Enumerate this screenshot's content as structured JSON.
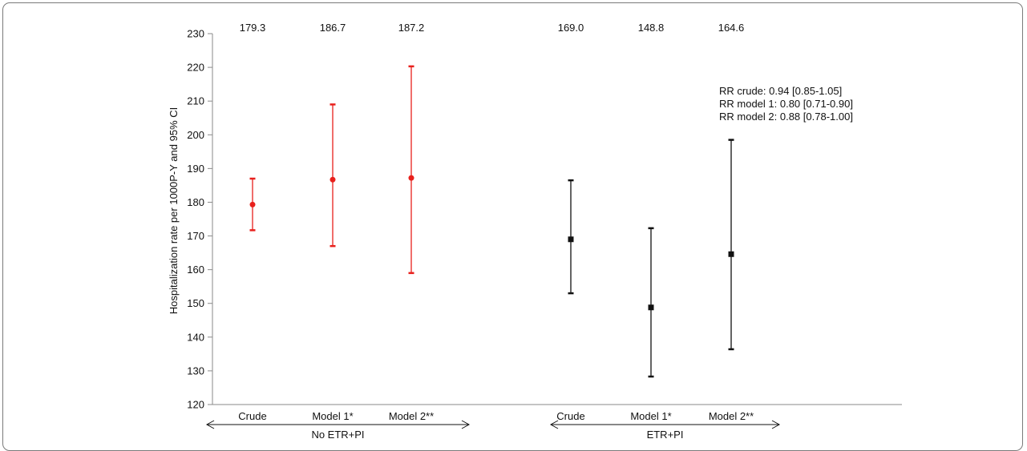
{
  "chart_data": {
    "type": "scatter",
    "ylabel": "Hospitalization rate per 1000P-Y and 95% CI",
    "ylim": [
      120,
      230
    ],
    "yticks": [
      120,
      130,
      140,
      150,
      160,
      170,
      180,
      190,
      200,
      210,
      220,
      230
    ],
    "groups": [
      {
        "name": "No ETR+PI",
        "color": "#e8201c",
        "marker": "circle",
        "points": [
          {
            "category": "Crude",
            "value": 179.3,
            "ci_low": 171.7,
            "ci_high": 187.0,
            "label": "179.3"
          },
          {
            "category": "Model 1*",
            "value": 186.7,
            "ci_low": 167.0,
            "ci_high": 209.0,
            "label": "186.7"
          },
          {
            "category": "Model 2**",
            "value": 187.2,
            "ci_low": 159.0,
            "ci_high": 220.3,
            "label": "187.2"
          }
        ]
      },
      {
        "name": "ETR+PI",
        "color": "#111111",
        "marker": "square",
        "points": [
          {
            "category": "Crude",
            "value": 169.0,
            "ci_low": 153.0,
            "ci_high": 186.5,
            "label": "169.0"
          },
          {
            "category": "Model 1*",
            "value": 148.8,
            "ci_low": 128.3,
            "ci_high": 172.3,
            "label": "148.8"
          },
          {
            "category": "Model 2**",
            "value": 164.6,
            "ci_low": 136.4,
            "ci_high": 198.5,
            "label": "164.6"
          }
        ]
      }
    ],
    "annotations": [
      "RR crude: 0.94 [0.85-1.05]",
      "RR model 1: 0.80 [0.71-0.90]",
      "RR model 2: 0.88 [0.78-1.00]"
    ]
  }
}
